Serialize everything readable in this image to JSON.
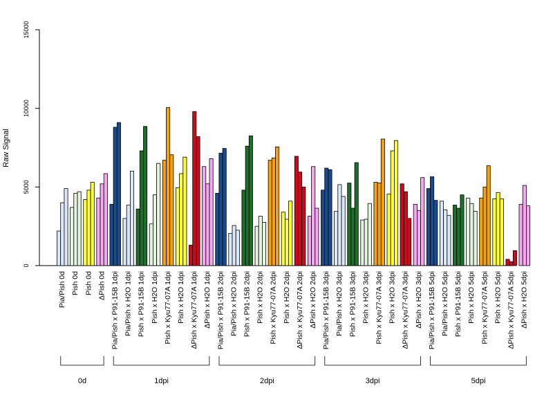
{
  "chart_data": {
    "type": "bar",
    "title": "",
    "xlabel": "",
    "ylabel": "Raw Signal",
    "ylim": [
      0,
      15000
    ],
    "yticks": [
      0,
      5000,
      10000,
      15000
    ],
    "grid": false,
    "legend": "none",
    "categories": [
      {
        "label": "Pia/Pish 0d",
        "group": "0d",
        "color": "#dbe8f7",
        "values": [
          2200,
          4000,
          4900
        ]
      },
      {
        "label": "Pish 0d",
        "group": "0d",
        "color": "#e4f4e0",
        "values": [
          3700,
          4600,
          4700
        ]
      },
      {
        "label": "Pish 0d",
        "group": "0d",
        "color": "#ffff33",
        "values": [
          4200,
          4800,
          5300
        ]
      },
      {
        "label": "ΔPish 0d",
        "group": "0d",
        "color": "#f5a8f0",
        "values": [
          4300,
          5200,
          5850
        ]
      },
      {
        "label": "Pia/Pish x P91-15B 1dpi",
        "group": "1dpi",
        "color": "#1a4c8c",
        "values": [
          3900,
          8800,
          9100
        ]
      },
      {
        "label": "Pia/Pish x H2O 1dpi",
        "group": "1dpi",
        "color": "#dbe8f7",
        "values": [
          3000,
          3850,
          6000
        ]
      },
      {
        "label": "Pish x P91-15B 1dpi",
        "group": "1dpi",
        "color": "#1f6e2b",
        "values": [
          3600,
          7300,
          8850
        ]
      },
      {
        "label": "Pish x H2O 1dpi",
        "group": "1dpi",
        "color": "#e4f4e0",
        "values": [
          2650,
          4500,
          6500
        ]
      },
      {
        "label": "Pish x Kyu77-07A 1dpi",
        "group": "1dpi",
        "color": "#f5a30a",
        "values": [
          6700,
          10050,
          7050
        ]
      },
      {
        "label": "Pish x H2O 1dpi",
        "group": "1dpi",
        "color": "#ffff33",
        "values": [
          4950,
          5850,
          6900
        ]
      },
      {
        "label": "ΔPish x Kyu77-07A 1dpi",
        "group": "1dpi",
        "color": "#cc0a1e",
        "values": [
          1300,
          9800,
          8200
        ]
      },
      {
        "label": "ΔPish x H2O 1dpi",
        "group": "1dpi",
        "color": "#f5a8f0",
        "values": [
          6300,
          5200,
          6800
        ]
      },
      {
        "label": "Pia/Pish x P91-15B 2dpi",
        "group": "2dpi",
        "color": "#1a4c8c",
        "values": [
          4600,
          7150,
          7450
        ]
      },
      {
        "label": "Pia/Pish x H2O 2dpi",
        "group": "2dpi",
        "color": "#dbe8f7",
        "values": [
          2050,
          2550,
          2250
        ]
      },
      {
        "label": "Pish x P91-15B 2dpi",
        "group": "2dpi",
        "color": "#1f6e2b",
        "values": [
          4800,
          7600,
          8250
        ]
      },
      {
        "label": "Pish x H2O 2dpi",
        "group": "2dpi",
        "color": "#e4f4e0",
        "values": [
          2500,
          3150,
          2750
        ]
      },
      {
        "label": "Pish x Kyu77-07A 2dpi",
        "group": "2dpi",
        "color": "#f5a30a",
        "values": [
          6700,
          6850,
          7550
        ]
      },
      {
        "label": "Pish x H2O 2dpi",
        "group": "2dpi",
        "color": "#ffff33",
        "values": [
          3400,
          2950,
          4100
        ]
      },
      {
        "label": "ΔPish x Kyu77-07A 2dpi",
        "group": "2dpi",
        "color": "#cc0a1e",
        "values": [
          6950,
          5950,
          5000
        ]
      },
      {
        "label": "ΔPish x H2O 2dpi",
        "group": "2dpi",
        "color": "#f5a8f0",
        "values": [
          3150,
          6300,
          3650
        ]
      },
      {
        "label": "Pia/Pish x P91-15B 3dpi",
        "group": "3dpi",
        "color": "#1a4c8c",
        "values": [
          4800,
          6200,
          6100
        ]
      },
      {
        "label": "Pia/Pish x H2O 3dpi",
        "group": "3dpi",
        "color": "#dbe8f7",
        "values": [
          3450,
          5150,
          4400
        ]
      },
      {
        "label": "Pish x P91-15B 3dpi",
        "group": "3dpi",
        "color": "#1f6e2b",
        "values": [
          5250,
          3650,
          6550
        ]
      },
      {
        "label": "Pish x H2O 3dpi",
        "group": "3dpi",
        "color": "#e4f4e0",
        "values": [
          2900,
          2950,
          3950
        ]
      },
      {
        "label": "Pish x Kyu77-07A 3dpi",
        "group": "3dpi",
        "color": "#f5a30a",
        "values": [
          5300,
          5250,
          8050
        ]
      },
      {
        "label": "Pish x H2O 3dpi",
        "group": "3dpi",
        "color": "#ffff33",
        "values": [
          4550,
          7300,
          7950
        ]
      },
      {
        "label": "ΔPish x Kyu77-07A 3dpi",
        "group": "3dpi",
        "color": "#cc0a1e",
        "values": [
          5200,
          4700,
          3000
        ]
      },
      {
        "label": "ΔPish x H2O 3dpi",
        "group": "3dpi",
        "color": "#f5a8f0",
        "values": [
          3900,
          3500,
          5600
        ]
      },
      {
        "label": "Pia/Pish x P91-15B 5dpi",
        "group": "5dpi",
        "color": "#1a4c8c",
        "values": [
          4900,
          5650,
          4150
        ]
      },
      {
        "label": "Pia/Pish x H2O 5dpi",
        "group": "5dpi",
        "color": "#dbe8f7",
        "values": [
          4100,
          3550,
          3200
        ]
      },
      {
        "label": "Pish x P91-15B 5dpi",
        "group": "5dpi",
        "color": "#1f6e2b",
        "values": [
          3850,
          3650,
          4500
        ]
      },
      {
        "label": "Pish x H2O 5dpi",
        "group": "5dpi",
        "color": "#e4f4e0",
        "values": [
          4300,
          3950,
          3450
        ]
      },
      {
        "label": "Pish x Kyu77-07A 5dpi",
        "group": "5dpi",
        "color": "#f5a30a",
        "values": [
          4300,
          5000,
          6350
        ]
      },
      {
        "label": "Pish x H2O 5dpi",
        "group": "5dpi",
        "color": "#ffff33",
        "values": [
          4250,
          4650,
          4250
        ]
      },
      {
        "label": "ΔPish x Kyu77-07A 5dpi",
        "group": "5dpi",
        "color": "#cc0a1e",
        "values": [
          400,
          250,
          950
        ]
      },
      {
        "label": "ΔPish x H2O 5dpi",
        "group": "5dpi",
        "color": "#f5a8f0",
        "values": [
          3900,
          5100,
          3800
        ]
      }
    ],
    "groups": [
      "0d",
      "1dpi",
      "2dpi",
      "3dpi",
      "5dpi"
    ]
  }
}
